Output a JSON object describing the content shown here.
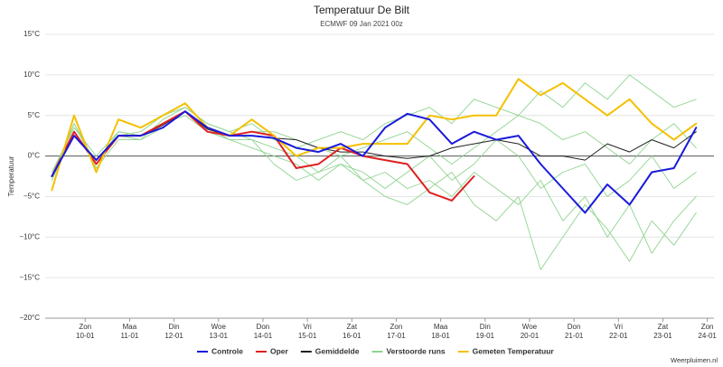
{
  "chart_data": {
    "type": "line",
    "title": "Temperatuur De Bilt",
    "subtitle": "ECMWF 09 Jan 2021 00z",
    "y_label": "Temperatuur",
    "credit": "Weerpluimen.nl",
    "x": [
      -0.75,
      -0.25,
      0.25,
      0.75,
      1.25,
      1.75,
      2.25,
      2.75,
      3.25,
      3.75,
      4.25,
      4.75,
      5.25,
      5.75,
      6.25,
      6.75,
      7.25,
      7.75,
      8.25,
      8.75,
      9.25,
      9.75,
      10.25,
      10.75,
      11.25,
      11.75,
      12.25,
      12.75,
      13.25,
      13.75
    ],
    "xlim": [
      -0.9,
      14.15
    ],
    "xticks": [
      {
        "value": 0,
        "label": "Zon"
      },
      {
        "value": 1,
        "label": "Maa"
      },
      {
        "value": 2,
        "label": "Din"
      },
      {
        "value": 3,
        "label": "Woe"
      },
      {
        "value": 4,
        "label": "Don"
      },
      {
        "value": 5,
        "label": "Vri"
      },
      {
        "value": 6,
        "label": "Zat"
      },
      {
        "value": 7,
        "label": "Zon"
      },
      {
        "value": 8,
        "label": "Maa"
      },
      {
        "value": 9,
        "label": "Din"
      },
      {
        "value": 10,
        "label": "Woe"
      },
      {
        "value": 11,
        "label": "Don"
      },
      {
        "value": 12,
        "label": "Vri"
      },
      {
        "value": 13,
        "label": "Zat"
      },
      {
        "value": 14,
        "label": "Zon"
      }
    ],
    "xtick_dates": [
      "10-01",
      "11-01",
      "12-01",
      "13-01",
      "14-01",
      "15-01",
      "16-01",
      "17-01",
      "18-01",
      "19-01",
      "20-01",
      "21-01",
      "22-01",
      "23-01",
      "24-01"
    ],
    "ylim": [
      -20,
      15
    ],
    "yticks": [
      {
        "value": -20,
        "label": "−20°C"
      },
      {
        "value": -15,
        "label": "−15°C"
      },
      {
        "value": -10,
        "label": "−10°C"
      },
      {
        "value": -5,
        "label": "−5°C"
      },
      {
        "value": 0,
        "label": "0°C"
      },
      {
        "value": 5,
        "label": "5°C"
      },
      {
        "value": 10,
        "label": "10°C"
      },
      {
        "value": 15,
        "label": "15°C"
      }
    ],
    "grid": true,
    "series": [
      {
        "name": "Controle",
        "color": "#1a1adb",
        "values": [
          -2.5,
          2.5,
          -0.5,
          2.5,
          2.5,
          3.5,
          5.5,
          3.5,
          2.5,
          2.5,
          2.2,
          1,
          0.5,
          1.5,
          0,
          3.5,
          5.2,
          4.5,
          1.5,
          3,
          2,
          2.5,
          -1,
          -4,
          -7,
          -3.5,
          -6,
          -2,
          -1.5,
          3.5
        ]
      },
      {
        "name": "Oper",
        "color": "#e02020",
        "values": [
          -2.5,
          3,
          -1,
          2.5,
          2.5,
          4,
          5.5,
          3,
          2.5,
          3,
          2.5,
          -1.5,
          -1,
          1,
          0,
          -0.5,
          -1,
          -4.5,
          -5.5,
          -2.5,
          null,
          null,
          null,
          null,
          null,
          null,
          null,
          null,
          null,
          null
        ]
      },
      {
        "name": "Gemiddelde",
        "color": "#222222",
        "values": [
          -2.5,
          2.5,
          -0.5,
          2.5,
          2.5,
          3.8,
          5.5,
          3.3,
          2.5,
          2.5,
          2.2,
          2,
          1,
          0.5,
          0.5,
          0,
          -0.3,
          0,
          1,
          1.5,
          2,
          1.5,
          0,
          0,
          -0.5,
          1.5,
          0.5,
          2,
          1,
          3
        ]
      },
      {
        "name": "Verstoorde runs",
        "color": "#8fd48f",
        "runs": [
          [
            -2,
            3,
            -1,
            3,
            2.5,
            4,
            5.5,
            3.5,
            2,
            2,
            1,
            0,
            -2,
            -1,
            -3,
            -2,
            -4,
            -3,
            -5,
            -2,
            -4,
            -6,
            -3,
            -8,
            -5,
            -10,
            -6,
            -12,
            -8,
            -5
          ],
          [
            -3,
            4,
            -1,
            2.5,
            2,
            4.5,
            6,
            4,
            3,
            4,
            2,
            1,
            2,
            3,
            2,
            4,
            5,
            6,
            4,
            7,
            6,
            5,
            8,
            6,
            9,
            7,
            10,
            8,
            6,
            7
          ],
          [
            -2,
            3.5,
            0,
            3,
            2.5,
            4,
            5,
            3,
            2,
            1,
            0,
            -1,
            -3,
            -1,
            -2,
            -4,
            -2,
            0,
            -3,
            -1,
            2,
            0,
            -4,
            -2,
            -1,
            -5,
            -3,
            0,
            -4,
            -2
          ],
          [
            -2.5,
            4,
            -1.5,
            2,
            2,
            3.5,
            5.5,
            3,
            2.5,
            3,
            3,
            2,
            1,
            0,
            1,
            2,
            3,
            1,
            -1,
            1,
            3,
            5,
            4,
            2,
            3,
            1,
            -1,
            2,
            4,
            1
          ],
          [
            -3,
            3,
            -1,
            2.5,
            3,
            5,
            6,
            4,
            3,
            2,
            -1,
            -3,
            -2,
            0,
            -3,
            -5,
            -6,
            -4,
            -2,
            -6,
            -8,
            -5,
            -14,
            -10,
            -6,
            -9,
            -13,
            -8,
            -11,
            -7
          ]
        ]
      },
      {
        "name": "Gemeten Temperatuur",
        "color": "#f5c000",
        "values": [
          -4.2,
          5,
          -2,
          4.5,
          3.5,
          5,
          6.5,
          3.5,
          2.5,
          4.5,
          2.5,
          0,
          1,
          1,
          1.5,
          1.5,
          1.5,
          5,
          4.5,
          5,
          5,
          9.5,
          7.5,
          9,
          7,
          5,
          7,
          4,
          2,
          4
        ]
      }
    ]
  }
}
